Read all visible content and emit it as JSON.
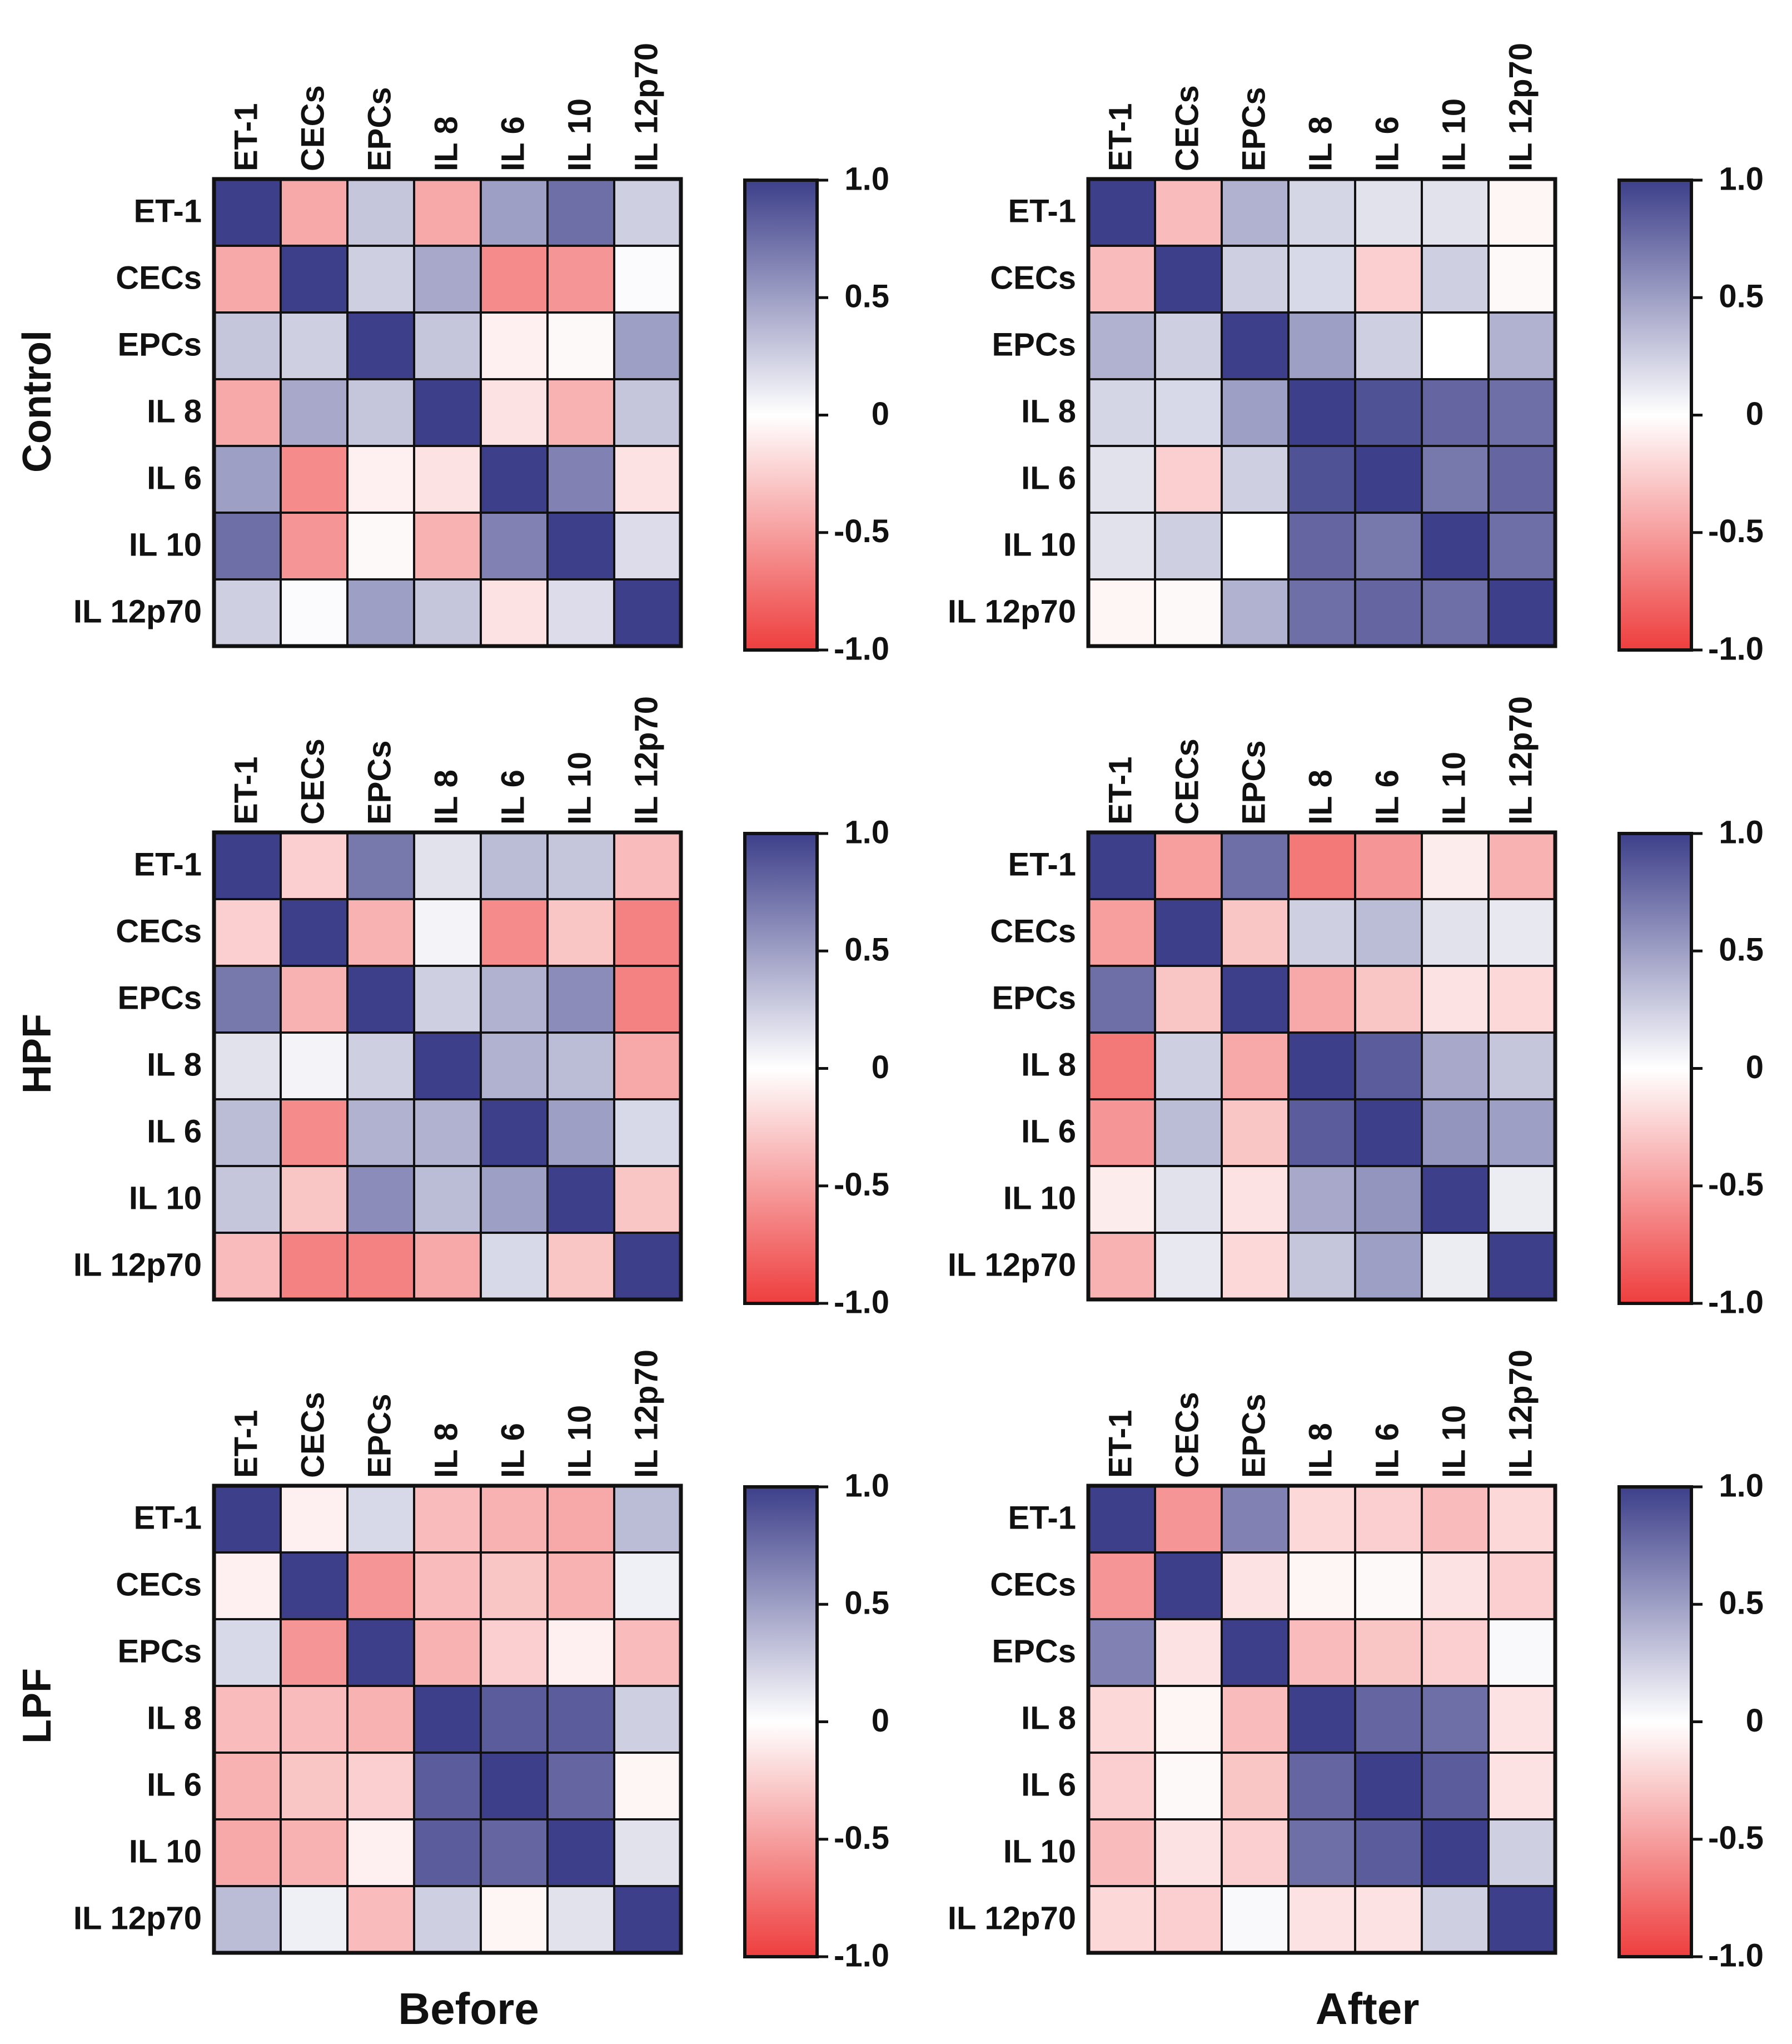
{
  "figure": {
    "row_labels": [
      "Control",
      "HPF",
      "LPF"
    ],
    "column_labels": [
      "Before",
      "After"
    ],
    "variables": [
      "ET-1",
      "CECs",
      "EPCs",
      "IL 8",
      "IL 6",
      "IL 10",
      "IL 12p70"
    ],
    "colorbar_ticks": [
      "1.0",
      "0.5",
      "0",
      "-0.5",
      "-1.0"
    ],
    "colors": {
      "negative": "#ee3e3e",
      "zero": "#ffffff",
      "positive": "#3d3f8a",
      "border": "#111111"
    }
  },
  "chart_data": [
    {
      "type": "heatmap",
      "title": "Control - Before",
      "group": "Control",
      "timepoint": "Before",
      "x": [
        "ET-1",
        "CECs",
        "EPCs",
        "IL 8",
        "IL 6",
        "IL 10",
        "IL 12p70"
      ],
      "y": [
        "ET-1",
        "CECs",
        "EPCs",
        "IL 8",
        "IL 6",
        "IL 10",
        "IL 12p70"
      ],
      "zlim": [
        -1.0,
        1.0
      ],
      "values": [
        [
          1.0,
          -0.45,
          0.3,
          -0.45,
          0.5,
          0.75,
          0.25
        ],
        [
          -0.45,
          1.0,
          0.25,
          0.45,
          -0.6,
          -0.55,
          0.02
        ],
        [
          0.3,
          0.25,
          1.0,
          0.3,
          -0.08,
          -0.03,
          0.5
        ],
        [
          -0.45,
          0.45,
          0.3,
          1.0,
          -0.15,
          -0.4,
          0.3
        ],
        [
          0.5,
          -0.6,
          -0.08,
          -0.15,
          1.0,
          0.65,
          -0.15
        ],
        [
          0.75,
          -0.55,
          -0.03,
          -0.4,
          0.65,
          1.0,
          0.18
        ],
        [
          0.25,
          0.02,
          0.5,
          0.3,
          -0.15,
          0.18,
          1.0
        ]
      ]
    },
    {
      "type": "heatmap",
      "title": "Control - After",
      "group": "Control",
      "timepoint": "After",
      "x": [
        "ET-1",
        "CECs",
        "EPCs",
        "IL 8",
        "IL 6",
        "IL 10",
        "IL 12p70"
      ],
      "y": [
        "ET-1",
        "CECs",
        "EPCs",
        "IL 8",
        "IL 6",
        "IL 10",
        "IL 12p70"
      ],
      "zlim": [
        -1.0,
        1.0
      ],
      "values": [
        [
          1.0,
          -0.35,
          0.4,
          0.22,
          0.15,
          0.15,
          -0.05
        ],
        [
          -0.35,
          1.0,
          0.25,
          0.2,
          -0.25,
          0.25,
          -0.03
        ],
        [
          0.4,
          0.25,
          1.0,
          0.5,
          0.25,
          0.0,
          0.4
        ],
        [
          0.22,
          0.2,
          0.5,
          1.0,
          0.9,
          0.8,
          0.75
        ],
        [
          0.15,
          -0.25,
          0.25,
          0.9,
          1.0,
          0.7,
          0.8
        ],
        [
          0.15,
          0.25,
          0.0,
          0.8,
          0.7,
          1.0,
          0.75
        ],
        [
          -0.05,
          -0.03,
          0.4,
          0.75,
          0.8,
          0.75,
          1.0
        ]
      ]
    },
    {
      "type": "heatmap",
      "title": "HPF - Before",
      "group": "HPF",
      "timepoint": "Before",
      "x": [
        "ET-1",
        "CECs",
        "EPCs",
        "IL 8",
        "IL 6",
        "IL 10",
        "IL 12p70"
      ],
      "y": [
        "ET-1",
        "CECs",
        "EPCs",
        "IL 8",
        "IL 6",
        "IL 10",
        "IL 12p70"
      ],
      "zlim": [
        -1.0,
        1.0
      ],
      "values": [
        [
          1.0,
          -0.25,
          0.7,
          0.15,
          0.35,
          0.3,
          -0.35
        ],
        [
          -0.25,
          1.0,
          -0.4,
          0.06,
          -0.6,
          -0.3,
          -0.65
        ],
        [
          0.7,
          -0.4,
          1.0,
          0.25,
          0.4,
          0.6,
          -0.65
        ],
        [
          0.15,
          0.06,
          0.25,
          1.0,
          0.4,
          0.35,
          -0.45
        ],
        [
          0.35,
          -0.6,
          0.4,
          0.4,
          1.0,
          0.5,
          0.2
        ],
        [
          0.3,
          -0.3,
          0.6,
          0.35,
          0.5,
          1.0,
          -0.3
        ],
        [
          -0.35,
          -0.65,
          -0.65,
          -0.45,
          0.2,
          -0.3,
          1.0
        ]
      ]
    },
    {
      "type": "heatmap",
      "title": "HPF - After",
      "group": "HPF",
      "timepoint": "After",
      "x": [
        "ET-1",
        "CECs",
        "EPCs",
        "IL 8",
        "IL 6",
        "IL 10",
        "IL 12p70"
      ],
      "y": [
        "ET-1",
        "CECs",
        "EPCs",
        "IL 8",
        "IL 6",
        "IL 10",
        "IL 12p70"
      ],
      "zlim": [
        -1.0,
        1.0
      ],
      "values": [
        [
          1.0,
          -0.5,
          0.75,
          -0.7,
          -0.55,
          -0.1,
          -0.4
        ],
        [
          -0.5,
          1.0,
          -0.3,
          0.25,
          0.35,
          0.15,
          0.12
        ],
        [
          0.75,
          -0.3,
          1.0,
          -0.45,
          -0.3,
          -0.15,
          -0.2
        ],
        [
          -0.7,
          0.25,
          -0.45,
          1.0,
          0.85,
          0.45,
          0.3
        ],
        [
          -0.55,
          0.35,
          -0.3,
          0.85,
          1.0,
          0.55,
          0.5
        ],
        [
          -0.1,
          0.15,
          -0.15,
          0.45,
          0.55,
          1.0,
          0.1
        ],
        [
          -0.4,
          0.12,
          -0.2,
          0.3,
          0.5,
          0.1,
          1.0
        ]
      ]
    },
    {
      "type": "heatmap",
      "title": "LPF - Before",
      "group": "LPF",
      "timepoint": "Before",
      "x": [
        "ET-1",
        "CECs",
        "EPCs",
        "IL 8",
        "IL 6",
        "IL 10",
        "IL 12p70"
      ],
      "y": [
        "ET-1",
        "CECs",
        "EPCs",
        "IL 8",
        "IL 6",
        "IL 10",
        "IL 12p70"
      ],
      "zlim": [
        -1.0,
        1.0
      ],
      "values": [
        [
          1.0,
          -0.08,
          0.2,
          -0.35,
          -0.4,
          -0.45,
          0.35
        ],
        [
          -0.08,
          1.0,
          -0.55,
          -0.35,
          -0.3,
          -0.4,
          0.08
        ],
        [
          0.2,
          -0.55,
          1.0,
          -0.4,
          -0.25,
          -0.08,
          -0.35
        ],
        [
          -0.35,
          -0.35,
          -0.4,
          1.0,
          0.85,
          0.85,
          0.25
        ],
        [
          -0.4,
          -0.3,
          -0.25,
          0.85,
          1.0,
          0.8,
          -0.05
        ],
        [
          -0.45,
          -0.4,
          -0.08,
          0.85,
          0.8,
          1.0,
          0.15
        ],
        [
          0.35,
          0.08,
          -0.35,
          0.25,
          -0.05,
          0.15,
          1.0
        ]
      ]
    },
    {
      "type": "heatmap",
      "title": "LPF - After",
      "group": "LPF",
      "timepoint": "After",
      "x": [
        "ET-1",
        "CECs",
        "EPCs",
        "IL 8",
        "IL 6",
        "IL 10",
        "IL 12p70"
      ],
      "y": [
        "ET-1",
        "CECs",
        "EPCs",
        "IL 8",
        "IL 6",
        "IL 10",
        "IL 12p70"
      ],
      "zlim": [
        -1.0,
        1.0
      ],
      "values": [
        [
          1.0,
          -0.55,
          0.65,
          -0.2,
          -0.25,
          -0.35,
          -0.2
        ],
        [
          -0.55,
          1.0,
          -0.15,
          -0.05,
          -0.03,
          -0.15,
          -0.25
        ],
        [
          0.65,
          -0.15,
          1.0,
          -0.35,
          -0.3,
          -0.25,
          0.03
        ],
        [
          -0.2,
          -0.05,
          -0.35,
          1.0,
          0.8,
          0.75,
          -0.15
        ],
        [
          -0.25,
          -0.03,
          -0.3,
          0.8,
          1.0,
          0.85,
          -0.15
        ],
        [
          -0.35,
          -0.15,
          -0.25,
          0.75,
          0.85,
          1.0,
          0.25
        ],
        [
          -0.2,
          -0.25,
          0.03,
          -0.15,
          -0.15,
          0.25,
          1.0
        ]
      ]
    }
  ]
}
